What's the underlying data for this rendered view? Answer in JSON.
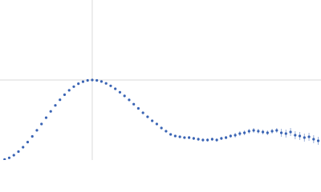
{
  "chart_data": {
    "type": "scatter",
    "x": [
      0.05,
      0.1,
      0.15,
      0.2,
      0.25,
      0.3,
      0.35,
      0.4,
      0.45,
      0.5,
      0.55,
      0.6,
      0.65,
      0.7,
      0.75,
      0.8,
      0.85,
      0.9,
      0.95,
      1.0,
      1.05,
      1.1,
      1.15,
      1.2,
      1.25,
      1.3,
      1.35,
      1.4,
      1.45,
      1.5,
      1.55,
      1.6,
      1.65,
      1.7,
      1.75,
      1.8,
      1.85,
      1.9,
      1.95,
      2.0,
      2.05,
      2.1,
      2.15,
      2.2,
      2.25,
      2.3,
      2.35,
      2.4,
      2.45,
      2.5,
      2.55,
      2.6,
      2.65,
      2.7,
      2.75,
      2.8,
      2.85,
      2.9,
      2.95,
      3.0,
      3.05,
      3.1,
      3.15,
      3.2,
      3.25,
      3.3,
      3.35,
      3.4,
      3.45
    ],
    "values": [
      0.007,
      0.027,
      0.06,
      0.105,
      0.16,
      0.224,
      0.295,
      0.371,
      0.45,
      0.529,
      0.608,
      0.683,
      0.753,
      0.816,
      0.871,
      0.917,
      0.954,
      0.979,
      0.995,
      1.0,
      0.995,
      0.981,
      0.958,
      0.927,
      0.89,
      0.847,
      0.801,
      0.751,
      0.698,
      0.645,
      0.59,
      0.54,
      0.49,
      0.45,
      0.4,
      0.36,
      0.32,
      0.3,
      0.29,
      0.28,
      0.28,
      0.27,
      0.26,
      0.25,
      0.25,
      0.26,
      0.25,
      0.27,
      0.28,
      0.3,
      0.31,
      0.33,
      0.34,
      0.36,
      0.37,
      0.36,
      0.35,
      0.34,
      0.36,
      0.37,
      0.34,
      0.33,
      0.35,
      0.31,
      0.3,
      0.28,
      0.29,
      0.26,
      0.24
    ],
    "errors": [
      0.005,
      0.005,
      0.005,
      0.005,
      0.005,
      0.005,
      0.005,
      0.005,
      0.005,
      0.005,
      0.005,
      0.005,
      0.005,
      0.005,
      0.005,
      0.005,
      0.005,
      0.005,
      0.005,
      0.005,
      0.005,
      0.005,
      0.005,
      0.005,
      0.005,
      0.005,
      0.005,
      0.005,
      0.005,
      0.005,
      0.01,
      0.01,
      0.01,
      0.01,
      0.01,
      0.01,
      0.01,
      0.01,
      0.01,
      0.01,
      0.02,
      0.02,
      0.02,
      0.02,
      0.02,
      0.02,
      0.02,
      0.02,
      0.02,
      0.02,
      0.03,
      0.03,
      0.03,
      0.03,
      0.03,
      0.03,
      0.03,
      0.03,
      0.03,
      0.03,
      0.05,
      0.05,
      0.05,
      0.05,
      0.05,
      0.05,
      0.05,
      0.05,
      0.05
    ],
    "color": "#3a64b4",
    "xlim": [
      0,
      3.48
    ],
    "ylim": [
      0,
      2
    ],
    "xticks": [
      1
    ],
    "yticks": [
      1
    ],
    "grid": true
  }
}
